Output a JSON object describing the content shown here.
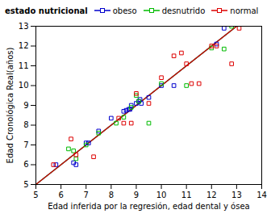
{
  "chart_data": {
    "type": "scatter",
    "xlabel": "Edad inferida por la regresión, edad dental y ósea",
    "ylabel": "Edad Cronológica Real(años)",
    "legend_title": "estado nutricional",
    "marker": "square",
    "grid": false,
    "xlim": [
      5,
      14
    ],
    "ylim": [
      5,
      13
    ],
    "xticks": [
      5,
      6,
      7,
      8,
      9,
      10,
      11,
      12,
      13,
      14
    ],
    "yticks": [
      5,
      6,
      7,
      8,
      9,
      10,
      11,
      12,
      13
    ],
    "series": [
      {
        "name": "obeso",
        "color": "#0000cc",
        "x": [
          5.8,
          6.5,
          6.6,
          7.0,
          7.1,
          7.5,
          8.0,
          8.5,
          8.6,
          8.7,
          8.75,
          8.8,
          9.0,
          9.1,
          9.15,
          9.2,
          9.5,
          10.0,
          10.5,
          12.2,
          12.5
        ],
        "values": [
          6.0,
          6.1,
          6.0,
          7.1,
          7.1,
          7.7,
          8.35,
          8.7,
          8.75,
          8.8,
          8.8,
          9.0,
          9.1,
          9.2,
          9.3,
          9.1,
          9.4,
          10.0,
          10.0,
          12.1,
          12.9
        ],
        "line_x": [
          5,
          13
        ],
        "line_y": [
          5,
          13
        ]
      },
      {
        "name": "desnutrido",
        "color": "#00bb00",
        "x": [
          6.3,
          6.5,
          6.6,
          7.0,
          7.5,
          8.2,
          8.5,
          8.8,
          9.0,
          9.1,
          9.5,
          10.0,
          11.0,
          12.0,
          12.5,
          12.8
        ],
        "values": [
          6.8,
          6.7,
          6.3,
          7.0,
          7.6,
          8.1,
          8.4,
          8.9,
          9.5,
          9.2,
          8.1,
          10.1,
          10.0,
          11.9,
          11.85,
          13.0
        ],
        "line_x": [
          5,
          13
        ],
        "line_y": [
          5,
          13
        ]
      },
      {
        "name": "normal",
        "color": "#dd0000",
        "x": [
          5.7,
          6.4,
          6.6,
          7.3,
          8.3,
          8.5,
          8.8,
          9.0,
          9.5,
          10.0,
          10.5,
          10.8,
          11.0,
          11.2,
          11.5,
          12.0,
          12.2,
          12.8,
          13.1
        ],
        "values": [
          6.0,
          7.3,
          6.5,
          6.4,
          8.35,
          8.1,
          8.1,
          9.6,
          9.1,
          10.4,
          11.5,
          11.65,
          11.1,
          10.1,
          10.1,
          12.0,
          12.0,
          11.1,
          12.9
        ],
        "line_x": [
          5,
          13
        ],
        "line_y": [
          5,
          13
        ]
      }
    ]
  }
}
